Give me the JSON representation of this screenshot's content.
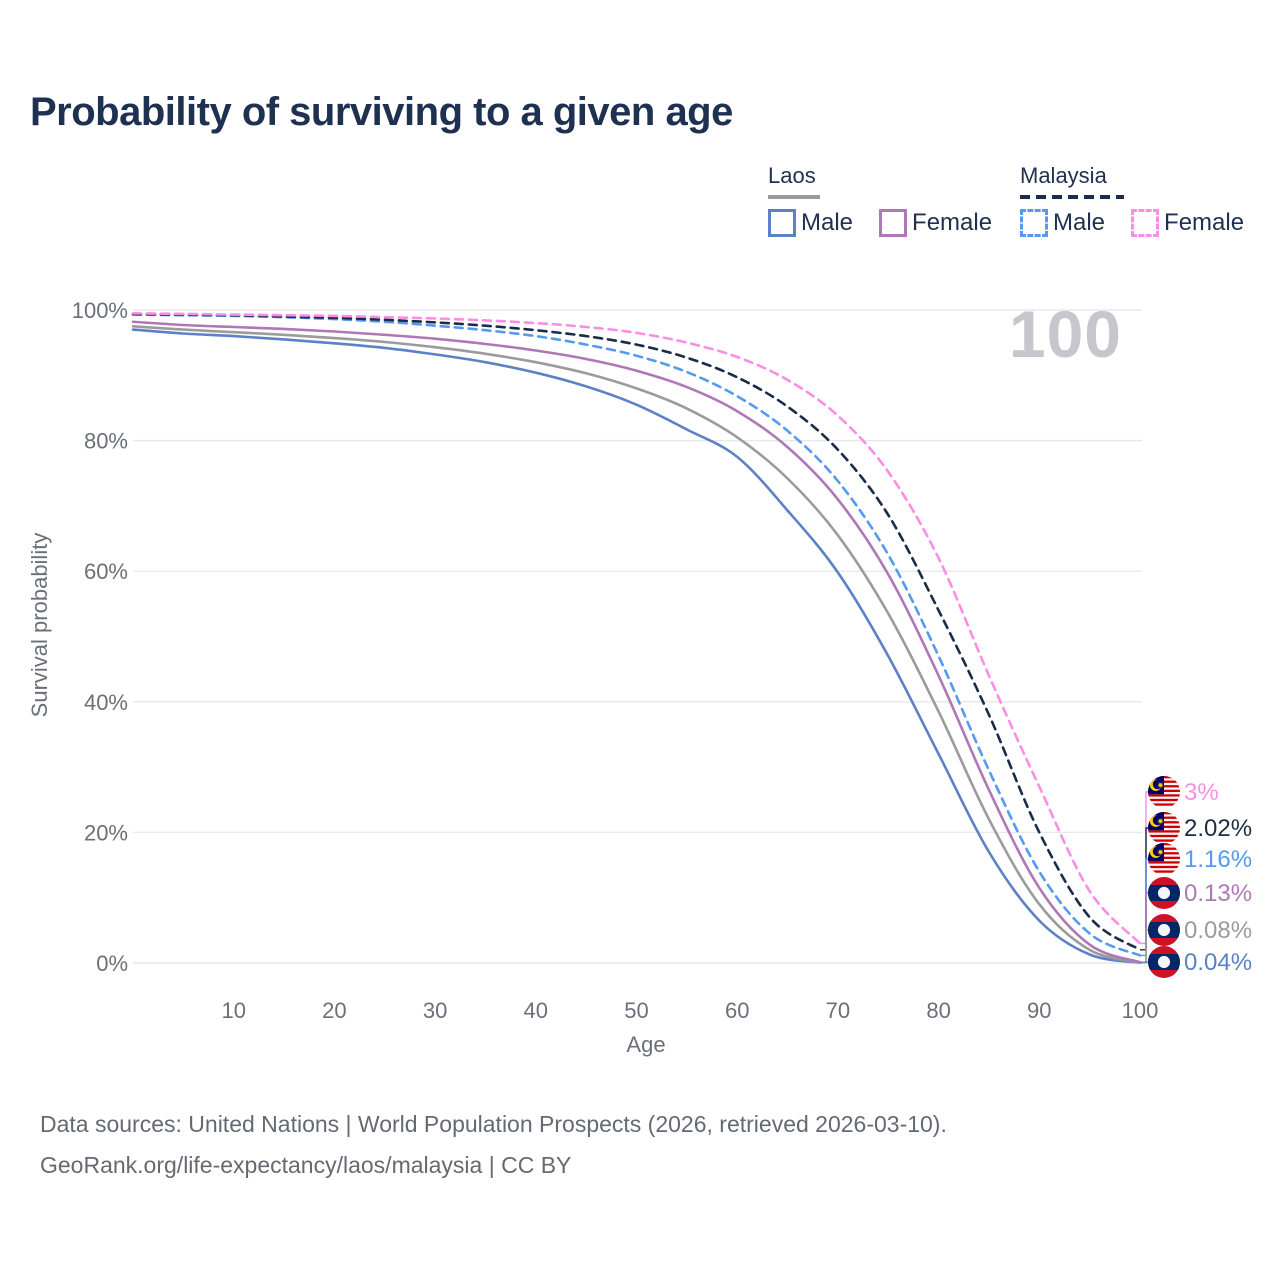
{
  "title": "Probability of surviving to a given age",
  "age_counter": "100",
  "legend": {
    "groups": [
      {
        "label": "Laos",
        "line_style": "solid",
        "line_color": "#9b9b9b",
        "items": [
          {
            "label": "Male",
            "color": "#5b82c6",
            "box_style": "solid"
          },
          {
            "label": "Female",
            "color": "#b077b7",
            "box_style": "solid"
          }
        ]
      },
      {
        "label": "Malaysia",
        "line_style": "dashed",
        "line_color": "#1b2c49",
        "items": [
          {
            "label": "Male",
            "color": "#569af0",
            "box_style": "dashed"
          },
          {
            "label": "Female",
            "color": "#fb8ee4",
            "box_style": "dashed"
          }
        ]
      }
    ]
  },
  "axes": {
    "ylabel": "Survival probability",
    "xlabel": "Age",
    "y_ticks": [
      {
        "value": 0,
        "label": "0%"
      },
      {
        "value": 20,
        "label": "20%"
      },
      {
        "value": 40,
        "label": "40%"
      },
      {
        "value": 60,
        "label": "60%"
      },
      {
        "value": 80,
        "label": "80%"
      },
      {
        "value": 100,
        "label": "100%"
      }
    ],
    "x_ticks": [
      10,
      20,
      30,
      40,
      50,
      60,
      70,
      80,
      90,
      100
    ]
  },
  "chart_data": {
    "type": "line",
    "title": "Probability of surviving to a given age",
    "xlabel": "Age",
    "ylabel": "Survival probability",
    "xlim": [
      0,
      100
    ],
    "ylim": [
      0,
      100
    ],
    "grid": "horizontal",
    "legend_position": "top-right",
    "x_ages": [
      0,
      5,
      10,
      15,
      20,
      25,
      30,
      35,
      40,
      45,
      50,
      55,
      60,
      65,
      70,
      75,
      80,
      85,
      90,
      95,
      100
    ],
    "series": [
      {
        "id": "malaysia_female",
        "name": "Malaysia Female",
        "country": "Malaysia",
        "sex": "Female",
        "color": "#fb8ee4",
        "dashed": true,
        "flag": "malaysia",
        "end_label": "3%",
        "values": [
          99.5,
          99.4,
          99.3,
          99.2,
          99.1,
          98.9,
          98.7,
          98.4,
          98.0,
          97.4,
          96.5,
          95.0,
          92.8,
          89.3,
          83.8,
          75.2,
          62.0,
          44.0,
          27.0,
          11.0,
          3.0
        ]
      },
      {
        "id": "malaysia_both",
        "name": "Malaysia",
        "country": "Malaysia",
        "sex": "Both",
        "color": "#1b2c49",
        "dashed": true,
        "flag": "malaysia",
        "end_label": "2.02%",
        "values": [
          99.4,
          99.3,
          99.2,
          99.0,
          98.8,
          98.5,
          98.1,
          97.6,
          96.9,
          96.0,
          94.7,
          92.7,
          89.7,
          85.2,
          78.6,
          68.6,
          54.0,
          38.0,
          20.0,
          7.0,
          2.02
        ]
      },
      {
        "id": "malaysia_male",
        "name": "Malaysia Male",
        "country": "Malaysia",
        "sex": "Male",
        "color": "#569af0",
        "dashed": true,
        "flag": "malaysia",
        "end_label": "1.16%",
        "values": [
          99.3,
          99.2,
          99.1,
          98.9,
          98.6,
          98.2,
          97.6,
          96.9,
          96.0,
          94.7,
          93.0,
          90.5,
          86.8,
          81.5,
          73.8,
          62.5,
          47.0,
          29.5,
          14.0,
          4.5,
          1.16
        ]
      },
      {
        "id": "laos_female",
        "name": "Laos Female",
        "country": "Laos",
        "sex": "Female",
        "color": "#b077b7",
        "dashed": false,
        "flag": "laos",
        "end_label": "0.13%",
        "values": [
          98.2,
          97.7,
          97.4,
          97.1,
          96.7,
          96.2,
          95.6,
          94.8,
          93.8,
          92.5,
          90.7,
          88.2,
          84.5,
          79.0,
          71.0,
          59.5,
          44.0,
          26.5,
          11.5,
          2.8,
          0.13
        ]
      },
      {
        "id": "laos_both",
        "name": "Laos",
        "country": "Laos",
        "sex": "Both",
        "color": "#9b9b9b",
        "dashed": false,
        "flag": "laos",
        "end_label": "0.08%",
        "values": [
          97.5,
          97.0,
          96.6,
          96.2,
          95.7,
          95.1,
          94.3,
          93.3,
          92.0,
          90.3,
          88.0,
          84.9,
          80.5,
          74.2,
          65.5,
          53.5,
          38.5,
          22.0,
          9.0,
          2.0,
          0.08
        ]
      },
      {
        "id": "laos_male",
        "name": "Laos Male",
        "country": "Laos",
        "sex": "Male",
        "color": "#5b82c6",
        "dashed": false,
        "flag": "laos",
        "end_label": "0.04%",
        "values": [
          97.0,
          96.4,
          96.0,
          95.5,
          94.9,
          94.2,
          93.2,
          92.0,
          90.4,
          88.3,
          85.5,
          81.7,
          77.5,
          69.3,
          59.8,
          47.0,
          32.0,
          17.0,
          6.5,
          1.3,
          0.04
        ]
      }
    ]
  },
  "footer": {
    "line1": "Data sources: United Nations | World Population Prospects (2026, retrieved 2026-03-10).",
    "line2": "GeoRank.org/life-expectancy/laos/malaysia | CC BY"
  }
}
